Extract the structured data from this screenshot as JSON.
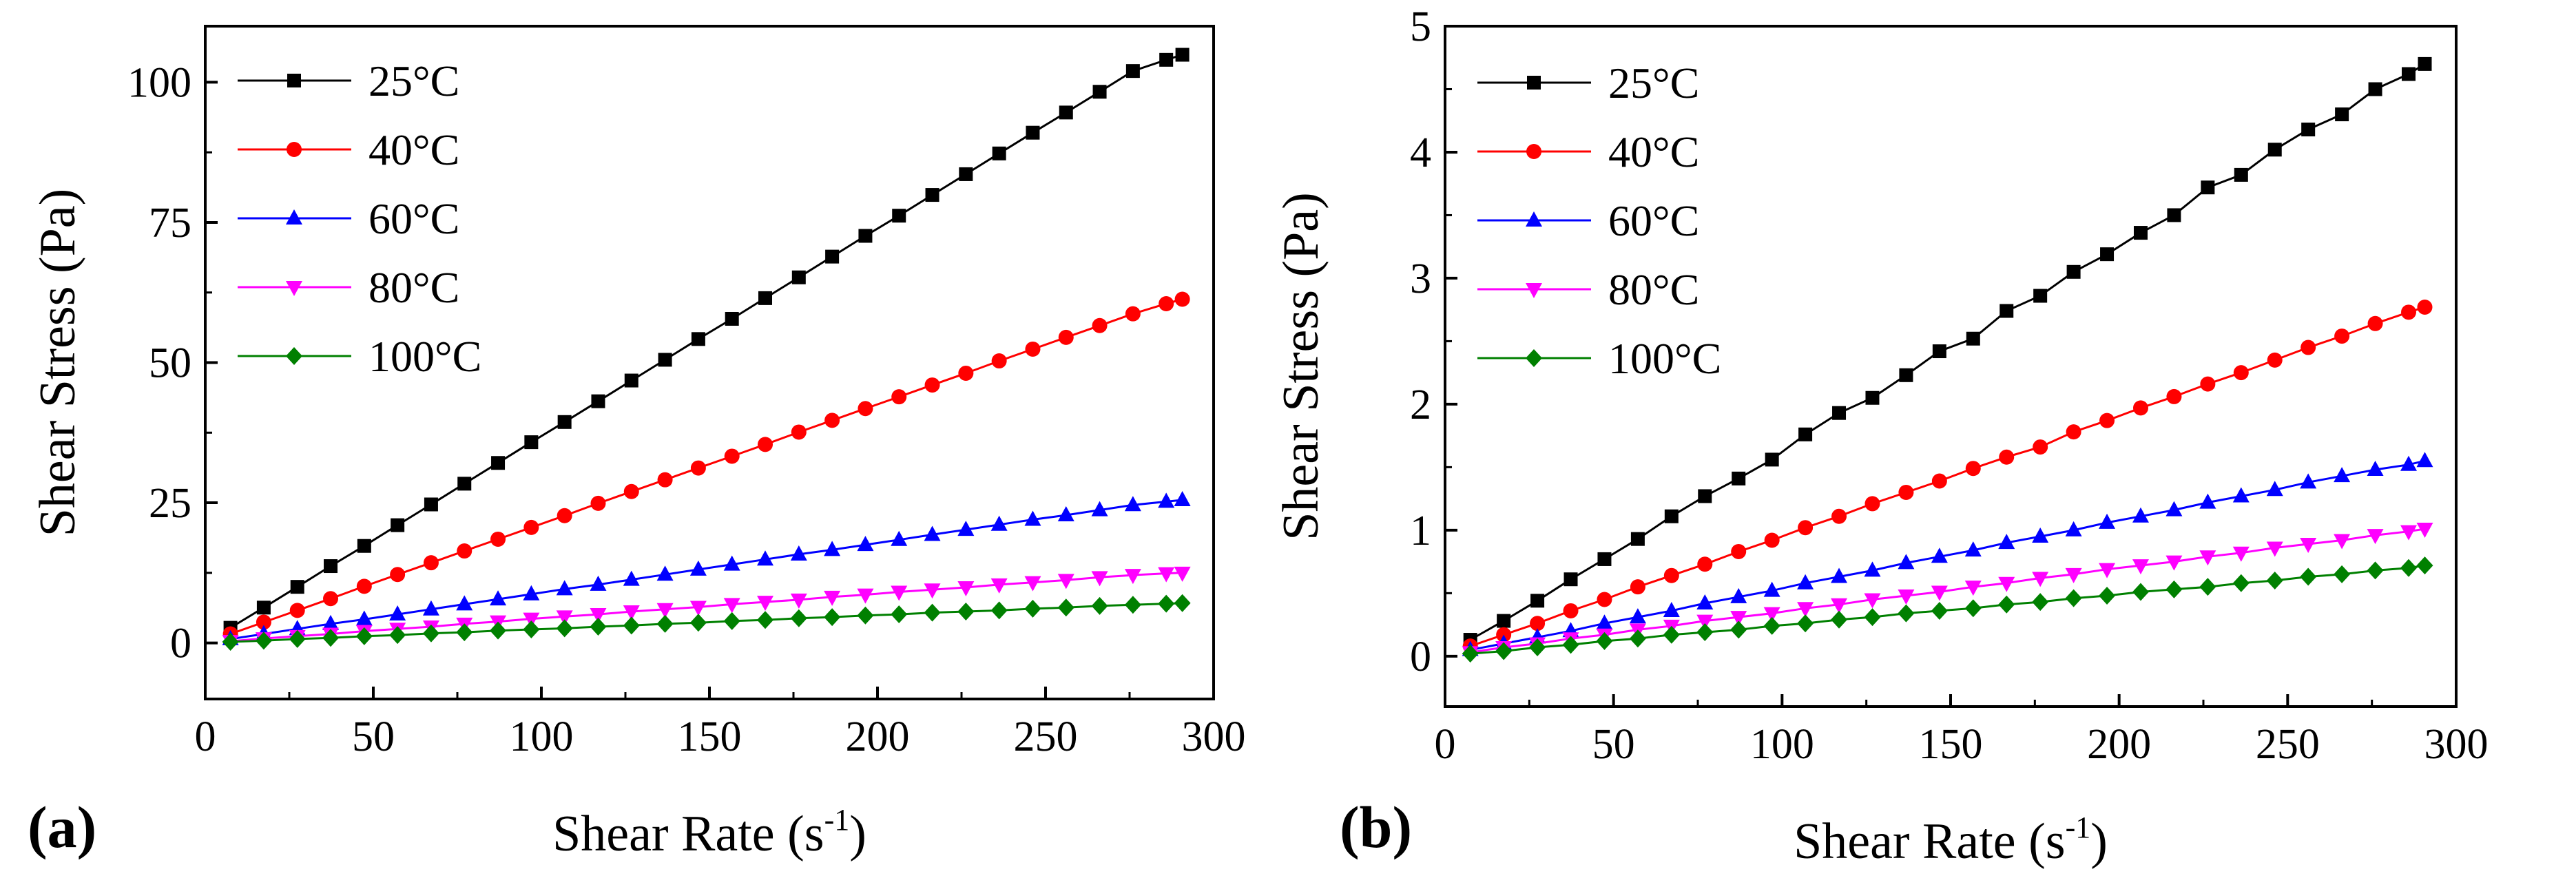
{
  "figure": {
    "panels": [
      "(a)",
      "(b)"
    ],
    "series_styles": [
      {
        "name": "25°C",
        "color": "#000000",
        "marker": "square"
      },
      {
        "name": "40°C",
        "color": "#ff0000",
        "marker": "circle"
      },
      {
        "name": "60°C",
        "color": "#0000ff",
        "marker": "triangle-up"
      },
      {
        "name": "80°C",
        "color": "#ff00ff",
        "marker": "triangle-down"
      },
      {
        "name": "100°C",
        "color": "#008000",
        "marker": "diamond"
      }
    ]
  },
  "chart_data": [
    {
      "panel_label": "(a)",
      "type": "line",
      "xlabel": "Shear Rate (s",
      "xlabel_sup": "-1",
      "xlabel_end": ")",
      "ylabel": "Shear Stress (Pa)",
      "xlim": [
        0,
        300
      ],
      "ylim": [
        -10,
        110
      ],
      "xticks": [
        0,
        50,
        100,
        150,
        200,
        250,
        300
      ],
      "xtick_labels": [
        "0",
        "50",
        "100",
        "150",
        "200",
        "250",
        "300"
      ],
      "yticks": [
        0,
        25,
        50,
        75,
        100
      ],
      "ytick_labels": [
        "0",
        "25",
        "50",
        "75",
        "100"
      ],
      "legend_position": "top-left",
      "x": [
        7.5,
        17.4,
        27.4,
        37.3,
        47.3,
        57.2,
        67.2,
        77.1,
        87.1,
        97.0,
        106.9,
        116.9,
        126.8,
        136.8,
        146.7,
        156.7,
        166.6,
        176.6,
        186.5,
        196.4,
        206.4,
        216.3,
        226.3,
        236.2,
        246.2,
        256.1,
        266.1,
        276.0,
        285.9,
        290.7
      ],
      "series": [
        {
          "name": "25°C",
          "values": [
            2.7,
            6.3,
            10.0,
            13.7,
            17.3,
            21.0,
            24.7,
            28.4,
            32.1,
            35.8,
            39.4,
            43.1,
            46.8,
            50.5,
            54.2,
            57.8,
            61.5,
            65.2,
            68.9,
            72.6,
            76.2,
            79.9,
            83.6,
            87.3,
            91.0,
            94.6,
            98.3,
            102.0,
            104.0,
            104.9
          ]
        },
        {
          "name": "40°C",
          "values": [
            1.6,
            3.7,
            5.8,
            7.9,
            10.1,
            12.2,
            14.3,
            16.4,
            18.5,
            20.6,
            22.7,
            24.9,
            27.0,
            29.1,
            31.2,
            33.3,
            35.4,
            37.6,
            39.7,
            41.8,
            43.9,
            46.0,
            48.1,
            50.3,
            52.4,
            54.5,
            56.6,
            58.7,
            60.5,
            61.3
          ]
        },
        {
          "name": "60°C",
          "values": [
            0.7,
            1.6,
            2.5,
            3.4,
            4.2,
            5.1,
            6.0,
            6.9,
            7.8,
            8.7,
            9.6,
            10.4,
            11.3,
            12.2,
            13.1,
            14.0,
            14.9,
            15.8,
            16.6,
            17.5,
            18.4,
            19.3,
            20.2,
            21.1,
            22.0,
            22.8,
            23.7,
            24.6,
            25.2,
            25.5
          ]
        },
        {
          "name": "80°C",
          "values": [
            0.3,
            0.8,
            1.2,
            1.6,
            2.1,
            2.5,
            2.9,
            3.4,
            3.8,
            4.3,
            4.7,
            5.1,
            5.6,
            6.0,
            6.4,
            6.9,
            7.3,
            7.7,
            8.2,
            8.6,
            9.1,
            9.5,
            9.9,
            10.4,
            10.8,
            11.2,
            11.7,
            12.1,
            12.4,
            12.5
          ]
        },
        {
          "name": "100°C",
          "values": [
            0.2,
            0.4,
            0.7,
            0.9,
            1.2,
            1.4,
            1.7,
            1.9,
            2.2,
            2.4,
            2.6,
            2.9,
            3.1,
            3.4,
            3.6,
            3.9,
            4.1,
            4.4,
            4.6,
            4.9,
            5.1,
            5.4,
            5.6,
            5.8,
            6.1,
            6.3,
            6.6,
            6.8,
            7.0,
            7.1
          ]
        }
      ]
    },
    {
      "panel_label": "(b)",
      "type": "line",
      "xlabel": "Shear Rate (s",
      "xlabel_sup": "-1",
      "xlabel_end": ")",
      "ylabel": "Shear Stress (Pa)",
      "xlim": [
        0,
        300
      ],
      "ylim": [
        -0.4,
        5
      ],
      "xticks": [
        0,
        50,
        100,
        150,
        200,
        250,
        300
      ],
      "xtick_labels": [
        "0",
        "50",
        "100",
        "150",
        "200",
        "250",
        "300"
      ],
      "yticks": [
        0,
        1,
        2,
        3,
        4,
        5
      ],
      "ytick_labels": [
        "0",
        "1",
        "2",
        "3",
        "4",
        "5"
      ],
      "legend_position": "top-left",
      "x": [
        7.5,
        17.4,
        27.4,
        37.3,
        47.3,
        57.2,
        67.2,
        77.1,
        87.1,
        97.0,
        106.9,
        116.9,
        126.8,
        136.8,
        146.7,
        156.7,
        166.6,
        176.6,
        186.5,
        196.4,
        206.4,
        216.3,
        226.3,
        236.2,
        246.2,
        256.1,
        266.1,
        276.0,
        285.9,
        290.7
      ],
      "series": [
        {
          "name": "25°C",
          "values": [
            0.13,
            0.28,
            0.44,
            0.61,
            0.77,
            0.93,
            1.11,
            1.27,
            1.41,
            1.56,
            1.76,
            1.93,
            2.05,
            2.23,
            2.42,
            2.52,
            2.74,
            2.86,
            3.05,
            3.19,
            3.36,
            3.5,
            3.72,
            3.82,
            4.02,
            4.18,
            4.3,
            4.5,
            4.62,
            4.7
          ]
        },
        {
          "name": "40°C",
          "values": [
            0.08,
            0.17,
            0.26,
            0.36,
            0.45,
            0.55,
            0.64,
            0.73,
            0.83,
            0.92,
            1.02,
            1.11,
            1.21,
            1.3,
            1.39,
            1.49,
            1.58,
            1.66,
            1.78,
            1.87,
            1.97,
            2.06,
            2.16,
            2.25,
            2.35,
            2.45,
            2.54,
            2.64,
            2.73,
            2.77
          ]
        },
        {
          "name": "60°C",
          "values": [
            0.05,
            0.1,
            0.15,
            0.2,
            0.26,
            0.31,
            0.36,
            0.42,
            0.47,
            0.52,
            0.58,
            0.63,
            0.68,
            0.74,
            0.79,
            0.84,
            0.9,
            0.95,
            1.0,
            1.06,
            1.11,
            1.16,
            1.22,
            1.27,
            1.32,
            1.38,
            1.43,
            1.48,
            1.52,
            1.55
          ]
        },
        {
          "name": "80°C",
          "values": [
            0.03,
            0.07,
            0.1,
            0.14,
            0.17,
            0.21,
            0.24,
            0.28,
            0.31,
            0.34,
            0.38,
            0.41,
            0.45,
            0.48,
            0.51,
            0.55,
            0.58,
            0.62,
            0.65,
            0.69,
            0.72,
            0.75,
            0.79,
            0.82,
            0.86,
            0.89,
            0.92,
            0.96,
            0.99,
            1.01
          ]
        },
        {
          "name": "100°C",
          "values": [
            0.02,
            0.04,
            0.07,
            0.09,
            0.12,
            0.14,
            0.17,
            0.19,
            0.21,
            0.24,
            0.26,
            0.29,
            0.31,
            0.34,
            0.36,
            0.38,
            0.41,
            0.43,
            0.46,
            0.48,
            0.51,
            0.53,
            0.55,
            0.58,
            0.6,
            0.63,
            0.65,
            0.68,
            0.7,
            0.72
          ]
        }
      ]
    }
  ]
}
